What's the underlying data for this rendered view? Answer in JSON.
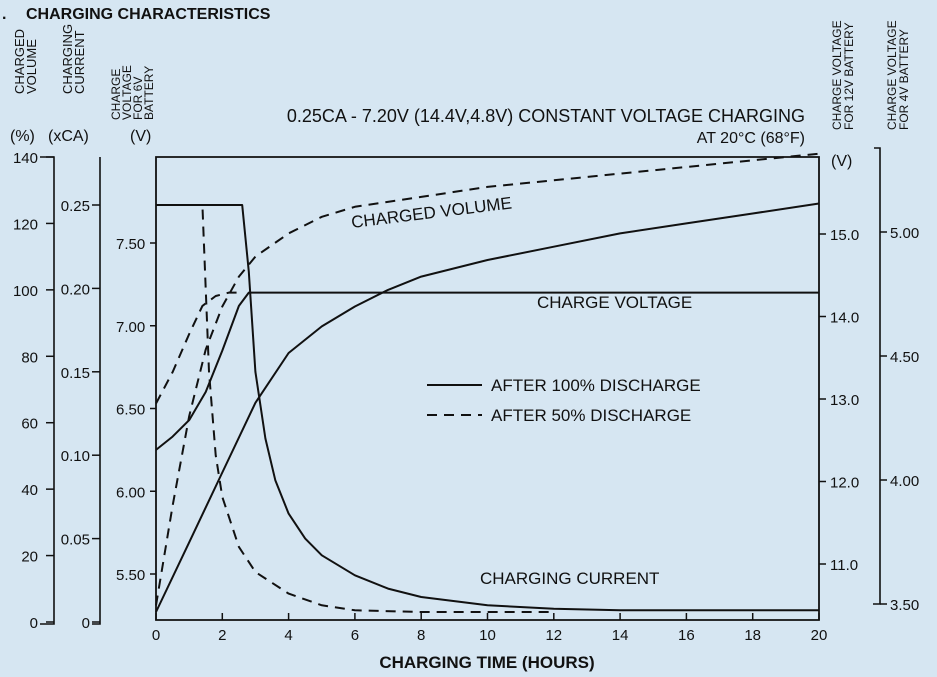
{
  "header": {
    "section_marker": ".",
    "title": "CHARGING CHARACTERISTICS"
  },
  "chart_data": {
    "type": "line",
    "subtitle_line1": "0.25CA - 7.20V (14.4V,4.8V) CONSTANT VOLTAGE CHARGING",
    "subtitle_line2": "AT 20°C (68°F)",
    "xlabel": "CHARGING TIME (HOURS)",
    "x_ticks": [
      "0",
      "2",
      "4",
      "6",
      "8",
      "10",
      "12",
      "14",
      "16",
      "18",
      "20"
    ],
    "xlim": [
      0,
      20
    ],
    "axes": {
      "charged_volume": {
        "title_lines": [
          "CHARGED",
          "VOLUME"
        ],
        "unit": "(%)",
        "range": [
          0,
          140
        ],
        "ticks": [
          "0",
          "20",
          "40",
          "60",
          "80",
          "100",
          "120",
          "140"
        ]
      },
      "charging_current": {
        "title_lines": [
          "CHARGING",
          "CURRENT"
        ],
        "unit": "(xCA)",
        "range": [
          0,
          0.28
        ],
        "ticks": [
          "0",
          "0.05",
          "0.10",
          "0.15",
          "0.20",
          "0.25"
        ]
      },
      "voltage_6v": {
        "title_lines": [
          "CHARGE",
          "VOLTAGE",
          "FOR 6V",
          "BATTERY"
        ],
        "unit": "(V)",
        "range": [
          5.25,
          7.9
        ],
        "ticks": [
          "5.50",
          "6.00",
          "6.50",
          "7.00",
          "7.50"
        ]
      },
      "voltage_12v": {
        "title_lines": [
          "CHARGE VOLTAGE",
          "FOR 12V BATTERY"
        ],
        "unit": "(V)",
        "range": [
          10.5,
          15.8
        ],
        "ticks": [
          "11.0",
          "12.0",
          "13.0",
          "14.0",
          "15.0"
        ]
      },
      "voltage_4v": {
        "title_lines": [
          "CHARGE VOLTAGE",
          "FOR 4V BATTERY"
        ],
        "range": [
          3.5,
          5.25
        ],
        "ticks": [
          "3.50",
          "4.00",
          "4.50",
          "5.00"
        ]
      }
    },
    "annotations": {
      "charged_volume": "CHARGED VOLUME",
      "charge_voltage": "CHARGE VOLTAGE",
      "charging_current": "CHARGING CURRENT"
    },
    "legend": {
      "placement": "center-right",
      "entries": [
        {
          "label": "AFTER 100% DISCHARGE",
          "style": "solid"
        },
        {
          "label": "AFTER 50% DISCHARGE",
          "style": "dashed"
        }
      ]
    },
    "series": [
      {
        "curve": "charged_volume",
        "condition": "after_100",
        "axis": "charged_volume",
        "style": "solid",
        "x": [
          0,
          1,
          2,
          3,
          4,
          5,
          6,
          7,
          8,
          10,
          12,
          14,
          16,
          18,
          20
        ],
        "y": [
          3,
          24,
          45,
          66,
          81,
          89,
          95,
          100,
          104,
          109,
          113,
          117,
          120,
          123,
          126
        ]
      },
      {
        "curve": "charged_volume",
        "condition": "after_50",
        "axis": "charged_volume",
        "style": "dashed",
        "x": [
          0,
          0.5,
          1,
          1.5,
          2,
          2.5,
          3,
          4,
          5,
          6,
          8,
          10,
          12,
          14,
          16,
          18,
          20
        ],
        "y": [
          5,
          35,
          62,
          82,
          95,
          104,
          110,
          117,
          122,
          125,
          128,
          131,
          133,
          135,
          137,
          139,
          141
        ]
      },
      {
        "curve": "charge_voltage",
        "condition": "after_100",
        "axis": "voltage_6v",
        "style": "solid",
        "x": [
          0,
          0.5,
          1,
          1.5,
          2,
          2.5,
          2.8,
          4,
          6,
          8,
          10,
          12,
          14,
          16,
          18,
          20
        ],
        "y": [
          6.25,
          6.33,
          6.43,
          6.6,
          6.85,
          7.12,
          7.2,
          7.2,
          7.2,
          7.2,
          7.2,
          7.2,
          7.2,
          7.2,
          7.2,
          7.2
        ]
      },
      {
        "curve": "charge_voltage",
        "condition": "after_50",
        "axis": "voltage_6v",
        "style": "dashed",
        "x": [
          0,
          0.5,
          1,
          1.4,
          1.8,
          2.2,
          2.5
        ],
        "y": [
          6.53,
          6.72,
          6.95,
          7.12,
          7.18,
          7.2,
          7.2
        ]
      },
      {
        "curve": "charging_current",
        "condition": "after_100",
        "axis": "charging_current",
        "style": "solid",
        "x": [
          0,
          2.6,
          2.8,
          3,
          3.3,
          3.6,
          4,
          4.5,
          5,
          6,
          7,
          8,
          10,
          12,
          14,
          16,
          18,
          20
        ],
        "y": [
          0.25,
          0.25,
          0.21,
          0.15,
          0.11,
          0.085,
          0.065,
          0.05,
          0.04,
          0.028,
          0.02,
          0.015,
          0.01,
          0.008,
          0.007,
          0.007,
          0.007,
          0.007
        ]
      },
      {
        "curve": "charging_current",
        "condition": "after_50",
        "axis": "charging_current",
        "style": "dashed",
        "x": [
          0,
          1.4,
          1.5,
          1.6,
          1.8,
          2,
          2.5,
          3,
          4,
          5,
          6,
          8,
          10,
          12
        ],
        "y": [
          0.25,
          0.25,
          0.2,
          0.15,
          0.1,
          0.075,
          0.045,
          0.03,
          0.017,
          0.01,
          0.007,
          0.006,
          0.006,
          0.006
        ]
      }
    ]
  }
}
